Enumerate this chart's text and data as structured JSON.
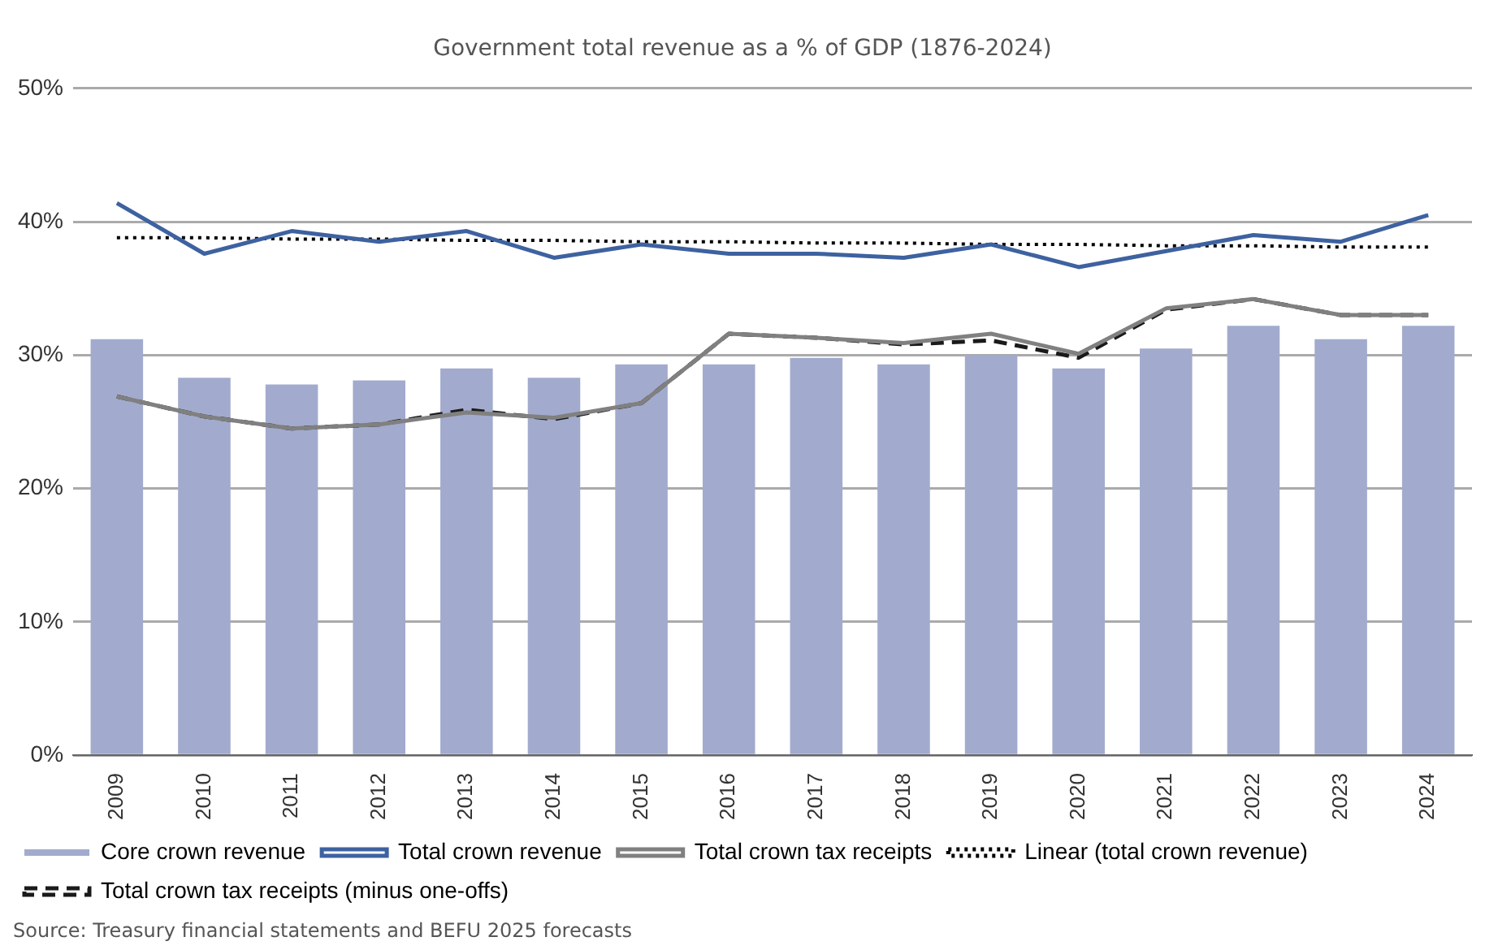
{
  "chart_data": {
    "type": "bar",
    "title": "Government total revenue as a % of GDP (1876-2024)",
    "categories": [
      "2009",
      "2010",
      "2011",
      "2012",
      "2013",
      "2014",
      "2015",
      "2016",
      "2017",
      "2018",
      "2019",
      "2020",
      "2021",
      "2022",
      "2023",
      "2024"
    ],
    "series": [
      {
        "name": "Core crown revenue",
        "color": "#a2abcd",
        "values": [
          31.2,
          28.3,
          27.8,
          28.1,
          29.0,
          28.3,
          29.3,
          29.3,
          29.8,
          29.3,
          30.0,
          29.0,
          30.5,
          32.2,
          31.2,
          32.2
        ]
      },
      {
        "name": "Total crown revenue",
        "type": "line",
        "color": "#3e62a0",
        "line_style": "solid",
        "values": [
          41.4,
          37.6,
          39.3,
          38.5,
          39.3,
          37.3,
          38.3,
          37.6,
          37.6,
          37.3,
          38.3,
          36.6,
          37.8,
          39.0,
          38.5,
          40.5
        ]
      },
      {
        "name": "Total crown tax receipts",
        "type": "line",
        "color": "#808080",
        "line_style": "solid",
        "values": [
          26.9,
          25.4,
          24.5,
          24.8,
          25.7,
          25.3,
          26.4,
          31.6,
          31.3,
          30.9,
          31.6,
          30.1,
          33.5,
          34.2,
          33.0,
          33.0
        ]
      },
      {
        "name": "Linear (total crown revenue)",
        "type": "line",
        "color": "#000000",
        "line_style": "dotted",
        "values": [
          38.8,
          38.8,
          38.7,
          38.7,
          38.6,
          38.6,
          38.5,
          38.5,
          38.4,
          38.4,
          38.3,
          38.3,
          38.2,
          38.2,
          38.1,
          38.1
        ]
      },
      {
        "name": "Total crown tax receipts (minus one-offs)",
        "type": "line",
        "color": "#1a1a1a",
        "line_style": "dashed",
        "values": [
          26.9,
          25.4,
          24.5,
          24.8,
          25.9,
          25.2,
          26.4,
          31.6,
          31.3,
          30.8,
          31.1,
          29.8,
          33.4,
          34.2,
          33.0,
          33.0
        ]
      }
    ],
    "ylim": [
      0,
      50
    ],
    "yticks": [
      {
        "value": 0,
        "label": "0%"
      },
      {
        "value": 10,
        "label": "10%"
      },
      {
        "value": 20,
        "label": "20%"
      },
      {
        "value": 30,
        "label": "30%"
      },
      {
        "value": 40,
        "label": "40%"
      },
      {
        "value": 50,
        "label": "50%"
      }
    ],
    "grid": "y",
    "legend": "bottom",
    "marker": "none",
    "annotations": [
      "Source: Treasury financial statements and BEFU 2025 forecasts"
    ]
  }
}
